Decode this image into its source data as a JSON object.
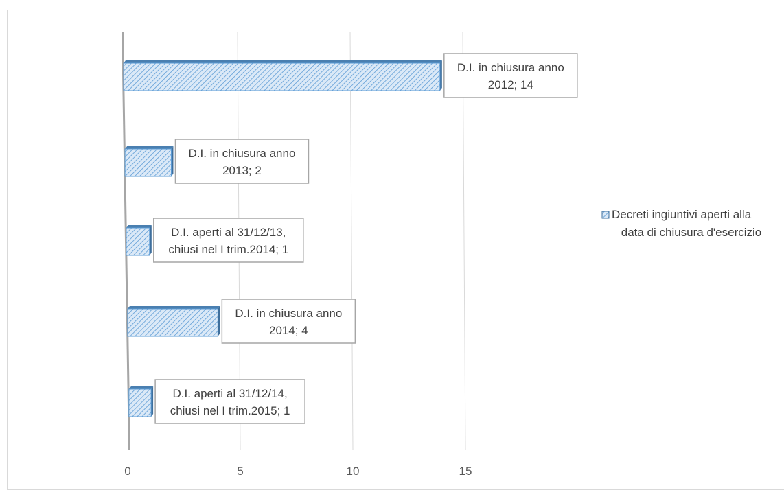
{
  "chart_data": {
    "type": "bar",
    "orientation": "horizontal",
    "categories": [
      "D.I. in chiusura anno 2012",
      "D.I. in chiusura anno 2013",
      "D.I. aperti al 31/12/13, chiusi nel I trim.2014",
      "D.I. in chiusura anno 2014",
      "D.I. aperti al 31/12/14, chiusi nel I trim.2015"
    ],
    "series": [
      {
        "name": "Decreti ingiuntivi aperti alla data di chiusura d'esercizio",
        "values": [
          14,
          2,
          1,
          4,
          1
        ],
        "color": "#5b9bd5"
      }
    ],
    "data_labels": [
      [
        "D.I. in chiusura anno",
        "2012; 14"
      ],
      [
        "D.I. in chiusura anno",
        "2013; 2"
      ],
      [
        "D.I. aperti al 31/12/13,",
        "chiusi nel I trim.2014; 1"
      ],
      [
        "D.I. in chiusura anno",
        "2014; 4"
      ],
      [
        "D.I. aperti al 31/12/14,",
        "chiusi nel I trim.2015; 1"
      ]
    ],
    "x_ticks": [
      "0",
      "5",
      "10",
      "15"
    ],
    "xlim": [
      0,
      15
    ],
    "grid": true,
    "legend": {
      "position": "right",
      "lines": [
        "Decreti ingiuntivi aperti alla",
        "data di chiusura d'esercizio"
      ]
    },
    "title": "",
    "xlabel": "",
    "ylabel": ""
  }
}
